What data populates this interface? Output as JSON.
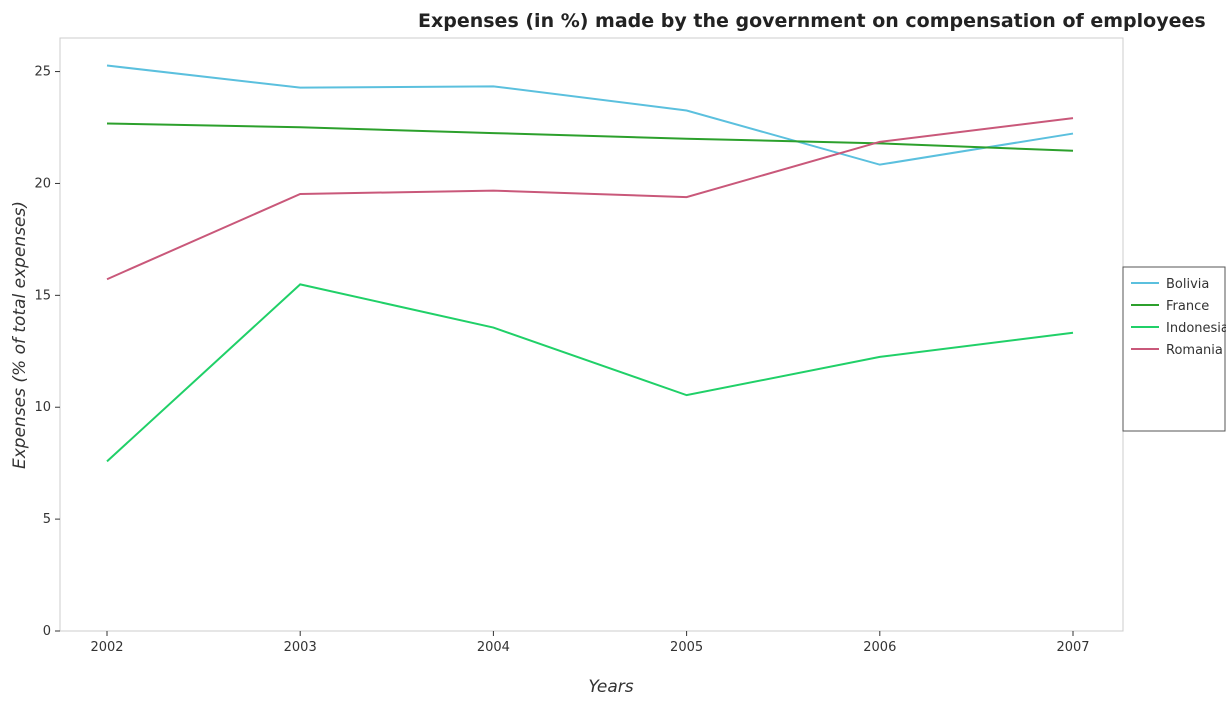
{
  "chart_data": {
    "type": "line",
    "title": "Expenses (in %) made by the government on compensation of employees",
    "xlabel": "Years",
    "ylabel": "Expenses (% of total expenses)",
    "x": [
      "2002",
      "2003",
      "2004",
      "2005",
      "2006",
      "2007"
    ],
    "ylim": [
      0,
      26.5
    ],
    "yticks": [
      0,
      5,
      10,
      15,
      20,
      25
    ],
    "ytick_labels": [
      "0",
      "5",
      "10",
      "15",
      "20",
      "25"
    ],
    "grid": false,
    "legend_position": "right",
    "series": [
      {
        "name": "Bolivia",
        "color": "#5bc0de",
        "values": [
          25.27,
          24.28,
          24.34,
          23.26,
          20.84,
          22.23
        ]
      },
      {
        "name": "France",
        "color": "#2ca02c",
        "values": [
          22.68,
          22.51,
          22.25,
          22.0,
          21.79,
          21.46
        ]
      },
      {
        "name": "Indonesia",
        "color": "#20d068",
        "values": [
          7.58,
          15.49,
          13.56,
          10.54,
          12.25,
          13.33
        ]
      },
      {
        "name": "Romania",
        "color": "#c9587a",
        "values": [
          15.72,
          19.53,
          19.68,
          19.39,
          21.86,
          22.92
        ]
      }
    ]
  }
}
